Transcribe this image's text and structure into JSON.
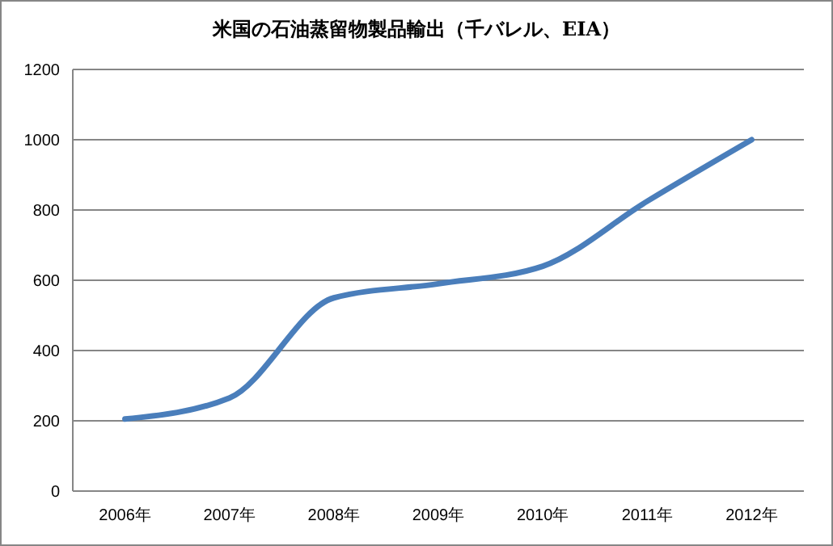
{
  "chart_data": {
    "type": "line",
    "title": "米国の石油蒸留物製品輸出（千バレル、EIA）",
    "categories": [
      "2006年",
      "2007年",
      "2008年",
      "2009年",
      "2010年",
      "2011年",
      "2012年"
    ],
    "series": [
      {
        "color": "#4a7ebb",
        "values": [
          205,
          265,
          550,
          590,
          640,
          825,
          1000
        ]
      }
    ],
    "ylim": [
      0,
      1200
    ],
    "yticks": [
      0,
      200,
      400,
      600,
      800,
      1000,
      1200
    ],
    "grid": "y",
    "marker": "none",
    "line_style": "solid"
  }
}
